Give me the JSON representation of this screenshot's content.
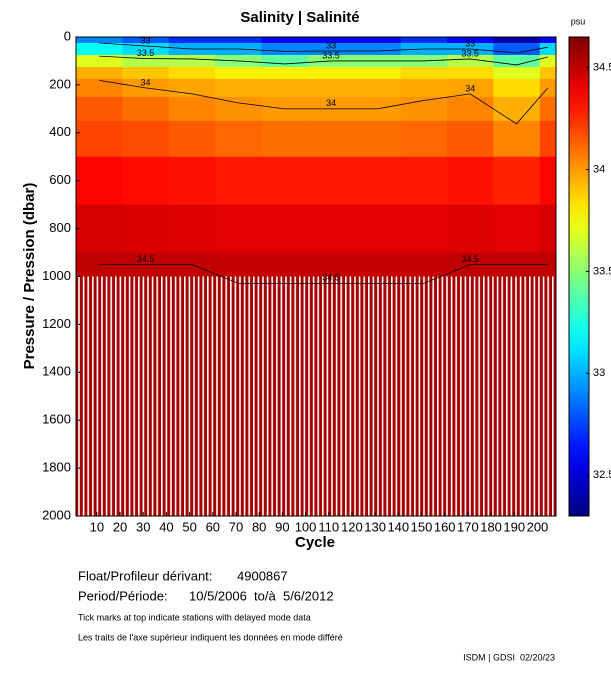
{
  "chart_data": {
    "type": "heatmap",
    "title": "Salinity | Salinité",
    "x_label": "Cycle",
    "y_label": "Pressure / Pression (dbar)",
    "colorbar_label": "psu",
    "colormap": "jet",
    "x_edges": [
      1,
      21,
      41,
      61,
      81,
      101,
      121,
      141,
      161,
      181,
      201,
      208
    ],
    "y_edges": [
      0,
      25,
      75,
      125,
      175,
      250,
      350,
      500,
      700,
      900,
      1000,
      2000
    ],
    "z": [
      [
        32.9,
        32.8,
        32.7,
        32.7,
        32.6,
        32.6,
        32.6,
        32.7,
        32.6,
        32.4,
        32.6
      ],
      [
        33.2,
        33.1,
        33.0,
        33.0,
        32.9,
        32.9,
        32.9,
        33.0,
        33.0,
        32.8,
        33.1
      ],
      [
        33.7,
        33.6,
        33.6,
        33.5,
        33.4,
        33.5,
        33.5,
        33.5,
        33.6,
        33.4,
        33.7
      ],
      [
        33.95,
        33.9,
        33.85,
        33.8,
        33.8,
        33.8,
        33.8,
        33.85,
        33.85,
        33.7,
        33.9
      ],
      [
        34.05,
        34.0,
        33.98,
        33.95,
        33.95,
        33.95,
        33.95,
        33.97,
        33.98,
        33.85,
        34.0
      ],
      [
        34.15,
        34.1,
        34.05,
        34.02,
        34.0,
        34.0,
        34.0,
        34.02,
        34.05,
        33.95,
        34.1
      ],
      [
        34.2,
        34.18,
        34.15,
        34.12,
        34.1,
        34.1,
        34.1,
        34.12,
        34.15,
        34.05,
        34.2
      ],
      [
        34.35,
        34.33,
        34.32,
        34.3,
        34.3,
        34.3,
        34.3,
        34.3,
        34.32,
        34.28,
        34.35
      ],
      [
        34.45,
        34.44,
        34.43,
        34.42,
        34.42,
        34.42,
        34.42,
        34.42,
        34.43,
        34.42,
        34.45
      ],
      [
        34.5,
        34.5,
        34.5,
        34.49,
        34.49,
        34.49,
        34.49,
        34.49,
        34.5,
        34.5,
        34.5
      ],
      [
        34.56,
        34.56,
        34.56,
        34.56,
        34.56,
        34.56,
        34.56,
        34.56,
        34.56,
        34.56,
        34.56
      ]
    ],
    "contour_levels": [
      33,
      33.5,
      34,
      34.5
    ],
    "xlim": [
      1,
      208
    ],
    "xticks": [
      10,
      20,
      30,
      40,
      50,
      60,
      70,
      80,
      90,
      100,
      110,
      120,
      130,
      140,
      150,
      160,
      170,
      180,
      190,
      200
    ],
    "ylim": [
      2000,
      0
    ],
    "yticks": [
      0,
      200,
      400,
      600,
      800,
      1000,
      1200,
      1400,
      1600,
      1800,
      2000
    ],
    "clim": [
      32.3,
      34.65
    ],
    "cticks": [
      32.5,
      33,
      33.5,
      34,
      34.5
    ],
    "float_label": "Float/Profileur dérivant:",
    "float_id": "4900867",
    "period_label": "Period/Période:",
    "period": "10/5/2006  to/à  5/6/2012",
    "note_en": "Tick marks at top indicate stations with delayed mode data",
    "note_fr": "Les traits de l'axe supérieur indiquent les données en mode différé",
    "credit": "ISDM | GDSI  02/20/23"
  }
}
